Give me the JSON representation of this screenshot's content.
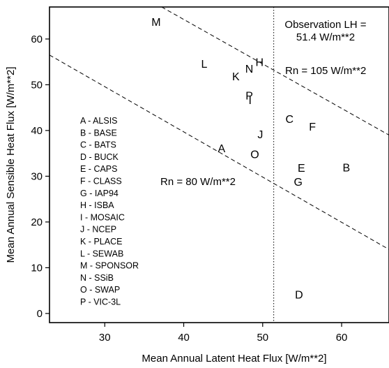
{
  "chart_data": {
    "type": "scatter",
    "xlabel": "Mean Annual Latent Heat Flux [W/m**2]",
    "ylabel": "Mean Annual Sensible Heat Flux [W/m**2]",
    "xlim": [
      23,
      66
    ],
    "ylim": [
      -2,
      67
    ],
    "xticks": [
      30,
      40,
      50,
      60
    ],
    "yticks": [
      0,
      10,
      20,
      30,
      40,
      50,
      60
    ],
    "grid": false,
    "points": [
      {
        "label": "A",
        "x": 44.8,
        "y": 36.2
      },
      {
        "label": "B",
        "x": 60.6,
        "y": 32.0
      },
      {
        "label": "C",
        "x": 53.4,
        "y": 42.6
      },
      {
        "label": "D",
        "x": 54.6,
        "y": 4.2
      },
      {
        "label": "E",
        "x": 54.9,
        "y": 31.9
      },
      {
        "label": "F",
        "x": 56.3,
        "y": 40.9
      },
      {
        "label": "G",
        "x": 54.5,
        "y": 28.8
      },
      {
        "label": "H",
        "x": 49.6,
        "y": 55.0
      },
      {
        "label": "I",
        "x": 48.4,
        "y": 46.7
      },
      {
        "label": "J",
        "x": 49.7,
        "y": 39.2
      },
      {
        "label": "K",
        "x": 46.6,
        "y": 51.9
      },
      {
        "label": "L",
        "x": 42.6,
        "y": 54.6
      },
      {
        "label": "M",
        "x": 36.5,
        "y": 63.8
      },
      {
        "label": "N",
        "x": 48.3,
        "y": 53.6
      },
      {
        "label": "O",
        "x": 49.0,
        "y": 34.9
      },
      {
        "label": "P",
        "x": 48.3,
        "y": 47.7
      }
    ],
    "legend": {
      "placement": "left",
      "entries": [
        "A - ALSIS",
        "B - BASE",
        "C - BATS",
        "D - BUCK",
        "E - CAPS",
        "F - CLASS",
        "G - IAP94",
        "H - ISBA",
        "I - MOSAIC",
        "J - NCEP",
        "K - PLACE",
        "L - SEWAB",
        "M - SPONSOR",
        "N - SSiB",
        "O - SWAP",
        "P - VIC-3L"
      ]
    },
    "reference_lines": [
      {
        "label": "Rn = 105 W/m**2",
        "style": "dashed",
        "x1": 37.2,
        "y1": 67.0,
        "x2": 66.0,
        "y2": 39.0
      },
      {
        "label": "Rn = 80 W/m**2",
        "style": "dashed",
        "x1": 23.0,
        "y1": 56.5,
        "x2": 66.0,
        "y2": 14.0
      },
      {
        "label": "Observation LH = 51.4 W/m**2",
        "style": "dotted",
        "x": 51.4
      }
    ],
    "annotations": {
      "observation_line1": "Observation LH =",
      "observation_line2": "51.4 W/m**2",
      "rn105": "Rn = 105 W/m**2",
      "rn80": "Rn = 80 W/m**2"
    }
  }
}
